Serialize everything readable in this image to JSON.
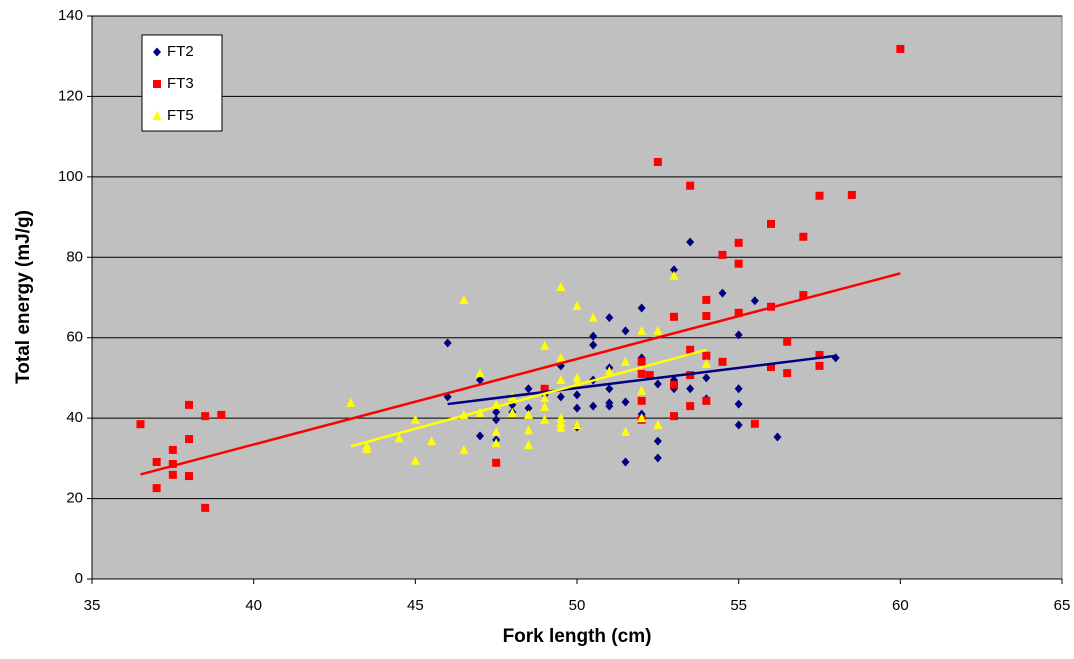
{
  "chart_data": {
    "type": "scatter",
    "x_label": "Fork length (cm)",
    "y_label": "Total energy (mJ/g)",
    "xlim": [
      35,
      65
    ],
    "xticks": [
      35,
      40,
      45,
      50,
      55,
      60,
      65
    ],
    "ylim": [
      0,
      140
    ],
    "yticks": [
      0,
      20,
      40,
      60,
      80,
      100,
      120,
      140
    ],
    "grid": true,
    "legend": "upper left",
    "background": "#c0c0c0",
    "series": [
      {
        "name": "FT2",
        "color": "#000080",
        "marker": "diamond",
        "x": [
          46,
          46,
          47,
          47,
          47.5,
          47.5,
          47.5,
          48,
          48,
          48.5,
          48.5,
          49,
          49.5,
          49.5,
          50,
          50,
          50,
          50.5,
          50.5,
          50.5,
          50.5,
          51,
          51,
          51,
          51,
          51,
          51.5,
          51.5,
          51.5,
          52,
          52,
          52,
          52,
          52.5,
          52.5,
          52.5,
          53,
          53,
          53,
          53.5,
          53.5,
          54,
          54,
          54.5,
          55,
          55,
          55,
          55,
          55.5,
          56.2,
          58
        ],
        "values": [
          58.7,
          45.3,
          49.5,
          35.6,
          39.6,
          41.5,
          34.6,
          41.5,
          43.3,
          47.3,
          42.5,
          45.8,
          53,
          45.3,
          42.5,
          37.8,
          45.8,
          58.2,
          60.4,
          43,
          49.5,
          65,
          47.3,
          52.5,
          43.8,
          43,
          61.7,
          29.1,
          44,
          67.4,
          55,
          41,
          40,
          30.1,
          34.3,
          48.5,
          76.9,
          47.3,
          49.5,
          83.8,
          47.3,
          50,
          44.8,
          71.1,
          60.7,
          47.3,
          43.5,
          38.3,
          69.2,
          35.3,
          55
        ],
        "trend": {
          "x": [
            46,
            58
          ],
          "values": [
            43.5,
            55.5
          ]
        }
      },
      {
        "name": "FT3",
        "color": "#ff0000",
        "marker": "square",
        "x": [
          36.5,
          37,
          37,
          37.5,
          37.5,
          37.5,
          38,
          38,
          38,
          38.5,
          38.5,
          39,
          47.5,
          49,
          52,
          52,
          52,
          52,
          52.5,
          52.25,
          53,
          53,
          53,
          53.5,
          53.5,
          53.5,
          53.5,
          54,
          54,
          54,
          54,
          54.5,
          54.5,
          55,
          55,
          55,
          55.5,
          56,
          56,
          56,
          56.5,
          56.5,
          57,
          57,
          57.5,
          57.5,
          57.5,
          58.5,
          60
        ],
        "values": [
          38.5,
          29.1,
          22.6,
          32.1,
          28.6,
          25.9,
          43.3,
          34.8,
          25.6,
          40.5,
          17.7,
          40.8,
          28.9,
          47.3,
          44.3,
          54,
          51,
          39.6,
          103.7,
          50.7,
          65.2,
          40.5,
          48.3,
          97.8,
          57,
          43,
          50.7,
          69.4,
          65.4,
          55.5,
          44.3,
          80.6,
          54,
          83.6,
          78.4,
          66.2,
          38.6,
          88.3,
          67.7,
          52.7,
          59,
          51.2,
          85.1,
          70.6,
          95.3,
          55.7,
          53,
          95.5,
          131.8
        ],
        "trend": {
          "x": [
            36.5,
            60
          ],
          "values": [
            26,
            76
          ]
        }
      },
      {
        "name": "FT5",
        "color": "#ffff00",
        "marker": "triangle",
        "x": [
          43,
          43.5,
          43.5,
          44.5,
          45,
          45,
          45.5,
          46.5,
          46.5,
          46.5,
          47,
          47,
          47.5,
          47.5,
          47.5,
          48,
          48,
          48.5,
          48.5,
          48.5,
          49,
          49,
          49,
          49,
          49.5,
          49.5,
          49.5,
          49.5,
          49.5,
          49.5,
          50,
          50,
          50,
          50,
          50.5,
          51,
          51.5,
          51.5,
          52,
          52,
          52,
          52.5,
          52.5,
          53,
          54
        ],
        "values": [
          43.8,
          33.1,
          32.3,
          35,
          39.6,
          29.4,
          34.3,
          69.4,
          40.8,
          32.1,
          51.2,
          41.3,
          36.6,
          33.8,
          43.3,
          45.3,
          41.3,
          37,
          33.3,
          40.8,
          58,
          42.8,
          39.6,
          45,
          72.6,
          55,
          49.5,
          38.8,
          37.6,
          40,
          67.9,
          50,
          48.5,
          38.3,
          65,
          51.7,
          54,
          36.6,
          61.7,
          46.8,
          40,
          61.7,
          38.3,
          75.4,
          53.5
        ],
        "trend": {
          "x": [
            43,
            54
          ],
          "values": [
            33,
            57
          ]
        }
      }
    ]
  }
}
